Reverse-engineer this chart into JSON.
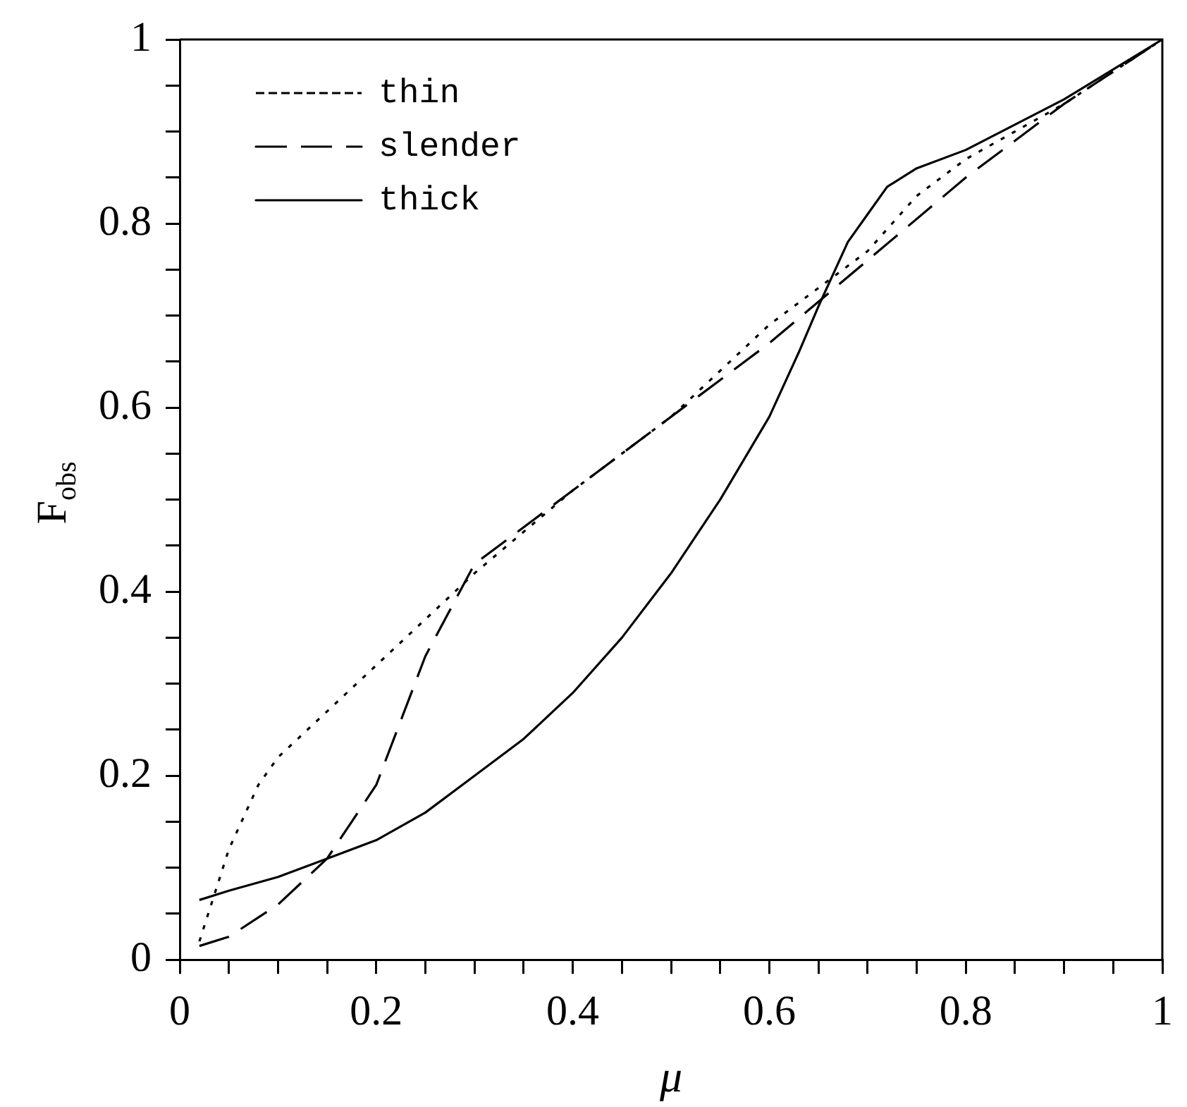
{
  "chart_data": {
    "type": "line",
    "xlabel": "μ",
    "ylabel": "F$_{obs}$",
    "xlim": [
      0,
      1
    ],
    "ylim": [
      0,
      1
    ],
    "xticks": [
      0,
      {
        "value": 0.05,
        "label": null
      },
      {
        "value": 0.1,
        "label": null
      },
      {
        "value": 0.15,
        "label": null
      },
      0.2,
      {
        "value": 0.25,
        "label": null
      },
      {
        "value": 0.3,
        "label": null
      },
      {
        "value": 0.35,
        "label": null
      },
      0.4,
      {
        "value": 0.45,
        "label": null
      },
      {
        "value": 0.5,
        "label": null
      },
      {
        "value": 0.55,
        "label": null
      },
      0.6,
      {
        "value": 0.65,
        "label": null
      },
      {
        "value": 0.7,
        "label": null
      },
      {
        "value": 0.75,
        "label": null
      },
      0.8,
      {
        "value": 0.85,
        "label": null
      },
      {
        "value": 0.9,
        "label": null
      },
      {
        "value": 0.95,
        "label": null
      },
      1
    ],
    "yticks": [
      0,
      {
        "value": 0.05,
        "label": null
      },
      {
        "value": 0.1,
        "label": null
      },
      {
        "value": 0.15,
        "label": null
      },
      0.2,
      {
        "value": 0.25,
        "label": null
      },
      {
        "value": 0.3,
        "label": null
      },
      {
        "value": 0.35,
        "label": null
      },
      0.4,
      {
        "value": 0.45,
        "label": null
      },
      {
        "value": 0.5,
        "label": null
      },
      {
        "value": 0.55,
        "label": null
      },
      0.6,
      {
        "value": 0.65,
        "label": null
      },
      {
        "value": 0.7,
        "label": null
      },
      {
        "value": 0.75,
        "label": null
      },
      0.8,
      {
        "value": 0.85,
        "label": null
      },
      {
        "value": 0.9,
        "label": null
      },
      {
        "value": 0.95,
        "label": null
      },
      1
    ],
    "grid": false,
    "legend": "top left",
    "marker": "none",
    "series": [
      {
        "name": "thin",
        "color": "#000000",
        "line_style": "dotted",
        "x": [
          0.02,
          0.05,
          0.08,
          0.1,
          0.15,
          0.2,
          0.25,
          0.3,
          0.4,
          0.5,
          0.6,
          0.7,
          0.75,
          0.8,
          0.9,
          1
        ],
        "values": [
          0.02,
          0.12,
          0.19,
          0.22,
          0.27,
          0.32,
          0.37,
          0.42,
          0.51,
          0.59,
          0.69,
          0.77,
          0.83,
          0.87,
          0.93,
          1
        ]
      },
      {
        "name": "slender",
        "color": "#000000",
        "line_style": "dashed",
        "x": [
          0.02,
          0.05,
          0.1,
          0.15,
          0.2,
          0.25,
          0.28,
          0.3,
          0.4,
          0.5,
          0.6,
          0.7,
          0.8,
          0.9,
          1
        ],
        "values": [
          0.015,
          0.025,
          0.06,
          0.11,
          0.19,
          0.33,
          0.39,
          0.43,
          0.51,
          0.59,
          0.67,
          0.76,
          0.85,
          0.93,
          1
        ]
      },
      {
        "name": "thick",
        "color": "#000000",
        "line_style": "solid",
        "x": [
          0.02,
          0.05,
          0.1,
          0.15,
          0.2,
          0.25,
          0.3,
          0.35,
          0.4,
          0.45,
          0.5,
          0.55,
          0.6,
          0.63,
          0.65,
          0.68,
          0.7,
          0.72,
          0.75,
          0.8,
          0.9,
          1
        ],
        "values": [
          0.065,
          0.075,
          0.09,
          0.11,
          0.13,
          0.16,
          0.2,
          0.24,
          0.29,
          0.35,
          0.42,
          0.5,
          0.59,
          0.66,
          0.71,
          0.78,
          0.81,
          0.84,
          0.86,
          0.88,
          0.935,
          1
        ]
      }
    ]
  }
}
